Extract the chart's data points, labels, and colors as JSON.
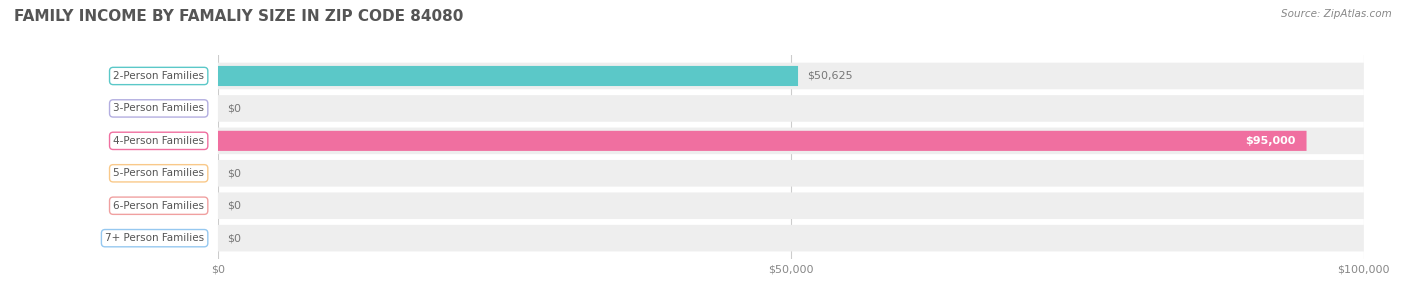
{
  "title": "FAMILY INCOME BY FAMALIY SIZE IN ZIP CODE 84080",
  "source": "Source: ZipAtlas.com",
  "categories": [
    "2-Person Families",
    "3-Person Families",
    "4-Person Families",
    "5-Person Families",
    "6-Person Families",
    "7+ Person Families"
  ],
  "values": [
    50625,
    0,
    95000,
    0,
    0,
    0
  ],
  "bar_colors": [
    "#5bc8c8",
    "#b3aee0",
    "#f06fa0",
    "#f9c98a",
    "#f0a0a0",
    "#96c8f0"
  ],
  "label_colors": [
    "#5bc8c8",
    "#b3aee0",
    "#f06fa0",
    "#f9c98a",
    "#f0a0a0",
    "#96c8f0"
  ],
  "value_labels": [
    "$50,625",
    "$0",
    "$95,000",
    "$0",
    "$0",
    "$0"
  ],
  "value_inside": [
    false,
    false,
    true,
    false,
    false,
    false
  ],
  "xlim": [
    0,
    100000
  ],
  "xticks": [
    0,
    50000,
    100000
  ],
  "xtick_labels": [
    "$0",
    "$50,000",
    "$100,000"
  ],
  "row_bg": "#efefef",
  "title_color": "#444444",
  "label_fontsize": 7.5,
  "value_fontsize": 8,
  "title_fontsize": 11
}
